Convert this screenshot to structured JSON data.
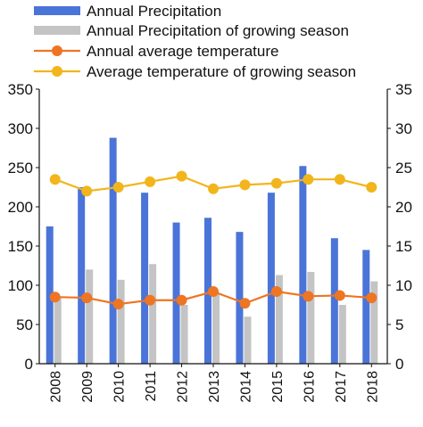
{
  "chart_data": {
    "type": "bar",
    "categories": [
      "2008",
      "2009",
      "2010",
      "2011",
      "2012",
      "2013",
      "2014",
      "2015",
      "2016",
      "2017",
      "2018"
    ],
    "series": [
      {
        "name": "Annual Precipitation",
        "type": "bar",
        "axis": "left",
        "color": "#4a74d8",
        "values": [
          175,
          225,
          288,
          218,
          180,
          186,
          168,
          218,
          252,
          160,
          145
        ]
      },
      {
        "name": "Annual Precipitation of growing season",
        "type": "bar",
        "axis": "left",
        "color": "#c4c4c4",
        "values": [
          85,
          120,
          107,
          127,
          75,
          90,
          60,
          113,
          117,
          75,
          105
        ]
      },
      {
        "name": "Annual average temperature",
        "type": "line",
        "axis": "right",
        "color": "#ee7523",
        "values": [
          8.5,
          8.4,
          7.6,
          8.1,
          8.1,
          9.2,
          7.7,
          9.2,
          8.6,
          8.7,
          8.4
        ]
      },
      {
        "name": "Average temperature of growing season",
        "type": "line",
        "axis": "right",
        "color": "#f2b51c",
        "values": [
          23.5,
          22.0,
          22.5,
          23.2,
          23.9,
          22.3,
          22.8,
          23.0,
          23.5,
          23.5,
          22.5
        ]
      }
    ],
    "ylim_left": [
      0,
      350
    ],
    "yticks_left": [
      "0",
      "50",
      "100",
      "150",
      "200",
      "250",
      "300",
      "350"
    ],
    "ylim_right": [
      0,
      35
    ],
    "yticks_right": [
      "0",
      "5",
      "10",
      "15",
      "20",
      "25",
      "30",
      "35"
    ],
    "title": "",
    "xlabel": "",
    "ylabel": "",
    "legend_position": "top",
    "grid": false
  }
}
